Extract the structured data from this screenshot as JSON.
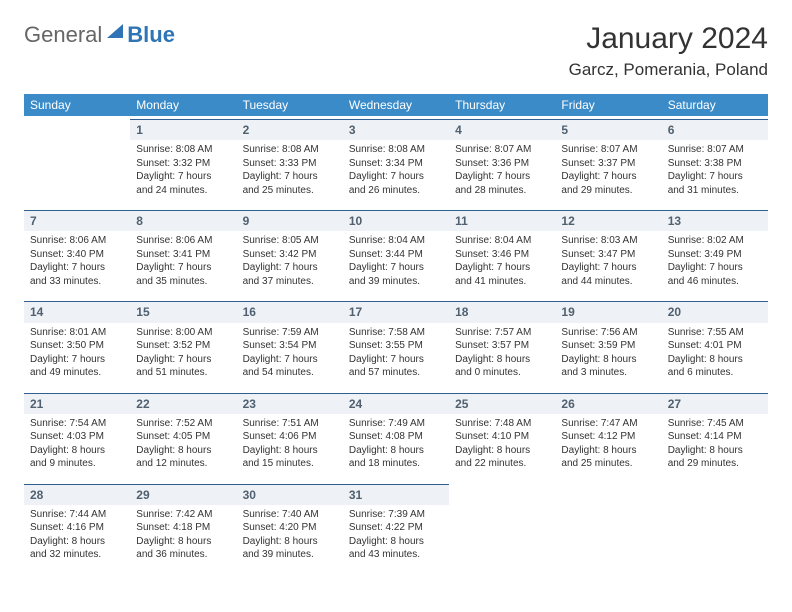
{
  "logo": {
    "word1": "General",
    "word2": "Blue",
    "brand_color": "#2f75b5"
  },
  "title": "January 2024",
  "location": "Garcz, Pomerania, Poland",
  "header_bg": "#3b8bc9",
  "header_fg": "#ffffff",
  "daynum_bg": "#eef2f6",
  "daynum_border": "#2f5f8f",
  "weekdays": [
    "Sunday",
    "Monday",
    "Tuesday",
    "Wednesday",
    "Thursday",
    "Friday",
    "Saturday"
  ],
  "start_offset": 1,
  "days": [
    {
      "n": "1",
      "sr": "8:08 AM",
      "ss": "3:32 PM",
      "dl": "7 hours and 24 minutes."
    },
    {
      "n": "2",
      "sr": "8:08 AM",
      "ss": "3:33 PM",
      "dl": "7 hours and 25 minutes."
    },
    {
      "n": "3",
      "sr": "8:08 AM",
      "ss": "3:34 PM",
      "dl": "7 hours and 26 minutes."
    },
    {
      "n": "4",
      "sr": "8:07 AM",
      "ss": "3:36 PM",
      "dl": "7 hours and 28 minutes."
    },
    {
      "n": "5",
      "sr": "8:07 AM",
      "ss": "3:37 PM",
      "dl": "7 hours and 29 minutes."
    },
    {
      "n": "6",
      "sr": "8:07 AM",
      "ss": "3:38 PM",
      "dl": "7 hours and 31 minutes."
    },
    {
      "n": "7",
      "sr": "8:06 AM",
      "ss": "3:40 PM",
      "dl": "7 hours and 33 minutes."
    },
    {
      "n": "8",
      "sr": "8:06 AM",
      "ss": "3:41 PM",
      "dl": "7 hours and 35 minutes."
    },
    {
      "n": "9",
      "sr": "8:05 AM",
      "ss": "3:42 PM",
      "dl": "7 hours and 37 minutes."
    },
    {
      "n": "10",
      "sr": "8:04 AM",
      "ss": "3:44 PM",
      "dl": "7 hours and 39 minutes."
    },
    {
      "n": "11",
      "sr": "8:04 AM",
      "ss": "3:46 PM",
      "dl": "7 hours and 41 minutes."
    },
    {
      "n": "12",
      "sr": "8:03 AM",
      "ss": "3:47 PM",
      "dl": "7 hours and 44 minutes."
    },
    {
      "n": "13",
      "sr": "8:02 AM",
      "ss": "3:49 PM",
      "dl": "7 hours and 46 minutes."
    },
    {
      "n": "14",
      "sr": "8:01 AM",
      "ss": "3:50 PM",
      "dl": "7 hours and 49 minutes."
    },
    {
      "n": "15",
      "sr": "8:00 AM",
      "ss": "3:52 PM",
      "dl": "7 hours and 51 minutes."
    },
    {
      "n": "16",
      "sr": "7:59 AM",
      "ss": "3:54 PM",
      "dl": "7 hours and 54 minutes."
    },
    {
      "n": "17",
      "sr": "7:58 AM",
      "ss": "3:55 PM",
      "dl": "7 hours and 57 minutes."
    },
    {
      "n": "18",
      "sr": "7:57 AM",
      "ss": "3:57 PM",
      "dl": "8 hours and 0 minutes."
    },
    {
      "n": "19",
      "sr": "7:56 AM",
      "ss": "3:59 PM",
      "dl": "8 hours and 3 minutes."
    },
    {
      "n": "20",
      "sr": "7:55 AM",
      "ss": "4:01 PM",
      "dl": "8 hours and 6 minutes."
    },
    {
      "n": "21",
      "sr": "7:54 AM",
      "ss": "4:03 PM",
      "dl": "8 hours and 9 minutes."
    },
    {
      "n": "22",
      "sr": "7:52 AM",
      "ss": "4:05 PM",
      "dl": "8 hours and 12 minutes."
    },
    {
      "n": "23",
      "sr": "7:51 AM",
      "ss": "4:06 PM",
      "dl": "8 hours and 15 minutes."
    },
    {
      "n": "24",
      "sr": "7:49 AM",
      "ss": "4:08 PM",
      "dl": "8 hours and 18 minutes."
    },
    {
      "n": "25",
      "sr": "7:48 AM",
      "ss": "4:10 PM",
      "dl": "8 hours and 22 minutes."
    },
    {
      "n": "26",
      "sr": "7:47 AM",
      "ss": "4:12 PM",
      "dl": "8 hours and 25 minutes."
    },
    {
      "n": "27",
      "sr": "7:45 AM",
      "ss": "4:14 PM",
      "dl": "8 hours and 29 minutes."
    },
    {
      "n": "28",
      "sr": "7:44 AM",
      "ss": "4:16 PM",
      "dl": "8 hours and 32 minutes."
    },
    {
      "n": "29",
      "sr": "7:42 AM",
      "ss": "4:18 PM",
      "dl": "8 hours and 36 minutes."
    },
    {
      "n": "30",
      "sr": "7:40 AM",
      "ss": "4:20 PM",
      "dl": "8 hours and 39 minutes."
    },
    {
      "n": "31",
      "sr": "7:39 AM",
      "ss": "4:22 PM",
      "dl": "8 hours and 43 minutes."
    }
  ],
  "labels": {
    "sunrise": "Sunrise: ",
    "sunset": "Sunset: ",
    "daylight": "Daylight: "
  }
}
